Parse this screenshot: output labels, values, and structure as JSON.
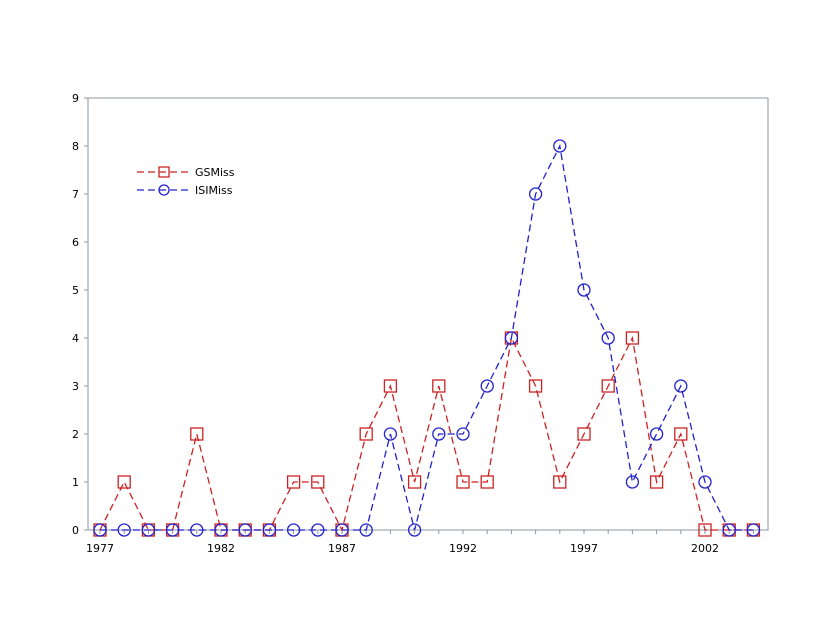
{
  "chart_data": {
    "type": "line",
    "title": "",
    "xlabel": "",
    "ylabel": "",
    "x": [
      1977,
      1978,
      1979,
      1980,
      1981,
      1982,
      1983,
      1984,
      1985,
      1986,
      1987,
      1988,
      1989,
      1990,
      1991,
      1992,
      1993,
      1994,
      1995,
      1996,
      1997,
      1998,
      1999,
      2000,
      2001,
      2002,
      2003,
      2004
    ],
    "xlim": [
      1977,
      2004
    ],
    "x_ticks": [
      "1977",
      "1982",
      "1987",
      "1992",
      "1997",
      "2002"
    ],
    "ylim": [
      0,
      9
    ],
    "y_ticks": [
      "0",
      "1",
      "2",
      "3",
      "4",
      "5",
      "6",
      "7",
      "8",
      "9"
    ],
    "grid": false,
    "legend_position": "top-left",
    "series": [
      {
        "name": "GSMiss",
        "color": "#cc2222",
        "marker": "square",
        "line_style": "dashed",
        "values": [
          0,
          1,
          0,
          0,
          2,
          0,
          0,
          0,
          1,
          1,
          0,
          2,
          3,
          1,
          3,
          1,
          1,
          4,
          3,
          1,
          2,
          3,
          4,
          1,
          2,
          0,
          0,
          0
        ]
      },
      {
        "name": "ISIMiss",
        "color": "#2222cc",
        "marker": "circle",
        "line_style": "dashed",
        "values": [
          0,
          0,
          0,
          0,
          0,
          0,
          0,
          0,
          0,
          0,
          0,
          0,
          2,
          0,
          2,
          2,
          3,
          4,
          7,
          8,
          5,
          4,
          1,
          2,
          3,
          1,
          0,
          0
        ]
      }
    ]
  }
}
